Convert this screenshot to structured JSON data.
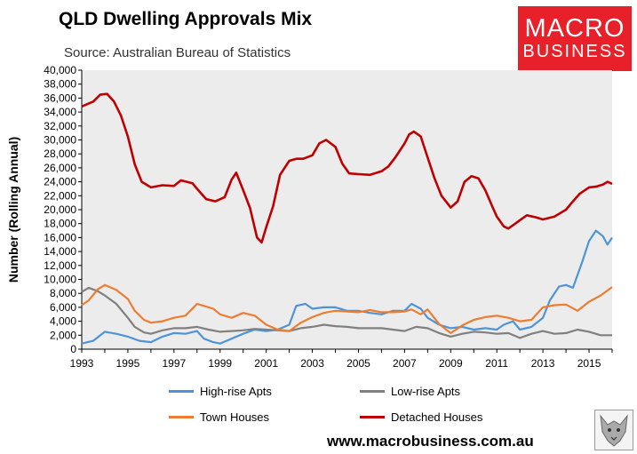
{
  "header": {
    "title": "QLD Dwelling Approvals Mix",
    "subtitle": "Source: Australian Bureau of Statistics"
  },
  "logo": {
    "line1": "MACRO",
    "line2": "BUSINESS",
    "color": "#e8202a"
  },
  "footer": {
    "url": "www.macrobusiness.com.au"
  },
  "chart_data": {
    "type": "line",
    "title": "QLD Dwelling Approvals Mix",
    "ylabel": "Number (Rolling Annual)",
    "xlabel": "",
    "xlim": [
      1993,
      2016
    ],
    "ylim": [
      0,
      40000
    ],
    "x_ticks": [
      "1993",
      "1995",
      "1997",
      "1999",
      "2001",
      "2003",
      "2005",
      "2007",
      "2009",
      "2011",
      "2013",
      "2015"
    ],
    "y_ticks": [
      "0",
      "2,000",
      "4,000",
      "6,000",
      "8,000",
      "10,000",
      "12,000",
      "14,000",
      "16,000",
      "18,000",
      "20,000",
      "22,000",
      "24,000",
      "26,000",
      "28,000",
      "30,000",
      "32,000",
      "34,000",
      "36,000",
      "38,000",
      "40,000"
    ],
    "grid": false,
    "plot_background": "#ececec",
    "legend_position": "bottom",
    "series": [
      {
        "name": "High-rise Apts",
        "color": "#4f94d6",
        "points": [
          [
            1993,
            800
          ],
          [
            1993.5,
            1200
          ],
          [
            1994,
            2500
          ],
          [
            1994.5,
            2200
          ],
          [
            1995,
            1800
          ],
          [
            1995.5,
            1200
          ],
          [
            1996,
            1000
          ],
          [
            1996.5,
            1800
          ],
          [
            1997,
            2300
          ],
          [
            1997.5,
            2200
          ],
          [
            1998,
            2600
          ],
          [
            1998.3,
            1500
          ],
          [
            1998.7,
            1000
          ],
          [
            1999,
            800
          ],
          [
            1999.5,
            1500
          ],
          [
            2000,
            2200
          ],
          [
            2000.5,
            2800
          ],
          [
            2001,
            2600
          ],
          [
            2001.5,
            2800
          ],
          [
            2002,
            3500
          ],
          [
            2002.3,
            6200
          ],
          [
            2002.7,
            6500
          ],
          [
            2003,
            5800
          ],
          [
            2003.5,
            6000
          ],
          [
            2004,
            6000
          ],
          [
            2004.5,
            5500
          ],
          [
            2005,
            5500
          ],
          [
            2005.5,
            5200
          ],
          [
            2006,
            5000
          ],
          [
            2006.5,
            5500
          ],
          [
            2007,
            5500
          ],
          [
            2007.3,
            6500
          ],
          [
            2007.7,
            5800
          ],
          [
            2008,
            4500
          ],
          [
            2008.5,
            3500
          ],
          [
            2009,
            3000
          ],
          [
            2009.5,
            3200
          ],
          [
            2010,
            2800
          ],
          [
            2010.5,
            3000
          ],
          [
            2011,
            2800
          ],
          [
            2011.3,
            3500
          ],
          [
            2011.7,
            4000
          ],
          [
            2012,
            2800
          ],
          [
            2012.5,
            3200
          ],
          [
            2013,
            4500
          ],
          [
            2013.3,
            7000
          ],
          [
            2013.7,
            9000
          ],
          [
            2014,
            9200
          ],
          [
            2014.3,
            8800
          ],
          [
            2014.7,
            12500
          ],
          [
            2015,
            15500
          ],
          [
            2015.3,
            17000
          ],
          [
            2015.6,
            16200
          ],
          [
            2015.8,
            15000
          ],
          [
            2016,
            16000
          ]
        ]
      },
      {
        "name": "Low-rise Apts",
        "color": "#808080",
        "points": [
          [
            1993,
            8200
          ],
          [
            1993.3,
            8800
          ],
          [
            1993.7,
            8300
          ],
          [
            1994,
            7700
          ],
          [
            1994.5,
            6500
          ],
          [
            1995,
            4500
          ],
          [
            1995.3,
            3200
          ],
          [
            1995.7,
            2400
          ],
          [
            1996,
            2200
          ],
          [
            1996.5,
            2700
          ],
          [
            1997,
            3000
          ],
          [
            1997.5,
            3000
          ],
          [
            1998,
            3200
          ],
          [
            1998.5,
            2800
          ],
          [
            1999,
            2500
          ],
          [
            1999.5,
            2600
          ],
          [
            2000,
            2700
          ],
          [
            2000.5,
            2900
          ],
          [
            2001,
            2800
          ],
          [
            2001.5,
            2700
          ],
          [
            2002,
            2600
          ],
          [
            2002.5,
            3000
          ],
          [
            2003,
            3200
          ],
          [
            2003.5,
            3500
          ],
          [
            2004,
            3300
          ],
          [
            2004.5,
            3200
          ],
          [
            2005,
            3000
          ],
          [
            2005.5,
            3000
          ],
          [
            2006,
            3000
          ],
          [
            2006.5,
            2800
          ],
          [
            2007,
            2600
          ],
          [
            2007.5,
            3200
          ],
          [
            2008,
            3000
          ],
          [
            2008.5,
            2300
          ],
          [
            2009,
            1800
          ],
          [
            2009.5,
            2200
          ],
          [
            2010,
            2500
          ],
          [
            2010.5,
            2400
          ],
          [
            2011,
            2200
          ],
          [
            2011.5,
            2300
          ],
          [
            2012,
            1600
          ],
          [
            2012.5,
            2200
          ],
          [
            2013,
            2600
          ],
          [
            2013.5,
            2200
          ],
          [
            2014,
            2300
          ],
          [
            2014.5,
            2800
          ],
          [
            2015,
            2500
          ],
          [
            2015.5,
            2000
          ],
          [
            2016,
            2000
          ]
        ]
      },
      {
        "name": "Town Houses",
        "color": "#ed7d31",
        "points": [
          [
            1993,
            6300
          ],
          [
            1993.3,
            7000
          ],
          [
            1993.7,
            8600
          ],
          [
            1994,
            9200
          ],
          [
            1994.5,
            8500
          ],
          [
            1995,
            7200
          ],
          [
            1995.3,
            5500
          ],
          [
            1995.7,
            4200
          ],
          [
            1996,
            3800
          ],
          [
            1996.5,
            4000
          ],
          [
            1997,
            4500
          ],
          [
            1997.5,
            4800
          ],
          [
            1998,
            6500
          ],
          [
            1998.3,
            6200
          ],
          [
            1998.7,
            5800
          ],
          [
            1999,
            5000
          ],
          [
            1999.5,
            4500
          ],
          [
            2000,
            5200
          ],
          [
            2000.5,
            4800
          ],
          [
            2001,
            3500
          ],
          [
            2001.5,
            2800
          ],
          [
            2002,
            2600
          ],
          [
            2002.5,
            3800
          ],
          [
            2003,
            4600
          ],
          [
            2003.5,
            5200
          ],
          [
            2004,
            5500
          ],
          [
            2004.5,
            5400
          ],
          [
            2005,
            5300
          ],
          [
            2005.5,
            5600
          ],
          [
            2006,
            5300
          ],
          [
            2006.5,
            5300
          ],
          [
            2007,
            5400
          ],
          [
            2007.3,
            5700
          ],
          [
            2007.7,
            5000
          ],
          [
            2008,
            5700
          ],
          [
            2008.5,
            3600
          ],
          [
            2009,
            2300
          ],
          [
            2009.5,
            3400
          ],
          [
            2010,
            4200
          ],
          [
            2010.5,
            4600
          ],
          [
            2011,
            4800
          ],
          [
            2011.5,
            4500
          ],
          [
            2012,
            4000
          ],
          [
            2012.5,
            4200
          ],
          [
            2013,
            6000
          ],
          [
            2013.5,
            6300
          ],
          [
            2014,
            6400
          ],
          [
            2014.5,
            5500
          ],
          [
            2015,
            6800
          ],
          [
            2015.5,
            7700
          ],
          [
            2016,
            8900
          ]
        ]
      },
      {
        "name": "Detached Houses",
        "color": "#c00000",
        "points": [
          [
            1993,
            34800
          ],
          [
            1993.5,
            35500
          ],
          [
            1993.8,
            36500
          ],
          [
            1994.1,
            36600
          ],
          [
            1994.4,
            35500
          ],
          [
            1994.7,
            33500
          ],
          [
            1995,
            30500
          ],
          [
            1995.3,
            26500
          ],
          [
            1995.6,
            24000
          ],
          [
            1996,
            23200
          ],
          [
            1996.5,
            23500
          ],
          [
            1997,
            23400
          ],
          [
            1997.3,
            24200
          ],
          [
            1997.8,
            23800
          ],
          [
            1998,
            23000
          ],
          [
            1998.4,
            21500
          ],
          [
            1998.8,
            21200
          ],
          [
            1999.2,
            21800
          ],
          [
            1999.5,
            24300
          ],
          [
            1999.7,
            25300
          ],
          [
            2000,
            22800
          ],
          [
            2000.3,
            20200
          ],
          [
            2000.6,
            16000
          ],
          [
            2000.8,
            15300
          ],
          [
            2001,
            17500
          ],
          [
            2001.3,
            20500
          ],
          [
            2001.6,
            25000
          ],
          [
            2002,
            27000
          ],
          [
            2002.3,
            27300
          ],
          [
            2002.6,
            27300
          ],
          [
            2003,
            27800
          ],
          [
            2003.3,
            29500
          ],
          [
            2003.6,
            30000
          ],
          [
            2004,
            29000
          ],
          [
            2004.3,
            26600
          ],
          [
            2004.6,
            25200
          ],
          [
            2005,
            25100
          ],
          [
            2005.5,
            25000
          ],
          [
            2006,
            25500
          ],
          [
            2006.3,
            26200
          ],
          [
            2006.6,
            27500
          ],
          [
            2007,
            29500
          ],
          [
            2007.2,
            30800
          ],
          [
            2007.4,
            31200
          ],
          [
            2007.7,
            30500
          ],
          [
            2008,
            27500
          ],
          [
            2008.3,
            24500
          ],
          [
            2008.6,
            22000
          ],
          [
            2009,
            20300
          ],
          [
            2009.3,
            21200
          ],
          [
            2009.6,
            24000
          ],
          [
            2009.9,
            24800
          ],
          [
            2010.2,
            24500
          ],
          [
            2010.5,
            22800
          ],
          [
            2010.8,
            20500
          ],
          [
            2011,
            19000
          ],
          [
            2011.3,
            17600
          ],
          [
            2011.5,
            17300
          ],
          [
            2011.8,
            18000
          ],
          [
            2012,
            18500
          ],
          [
            2012.3,
            19200
          ],
          [
            2012.7,
            18900
          ],
          [
            2013,
            18600
          ],
          [
            2013.5,
            19000
          ],
          [
            2014,
            20000
          ],
          [
            2014.3,
            21200
          ],
          [
            2014.6,
            22300
          ],
          [
            2015,
            23200
          ],
          [
            2015.3,
            23300
          ],
          [
            2015.6,
            23600
          ],
          [
            2015.8,
            24000
          ],
          [
            2016,
            23700
          ]
        ]
      }
    ]
  }
}
